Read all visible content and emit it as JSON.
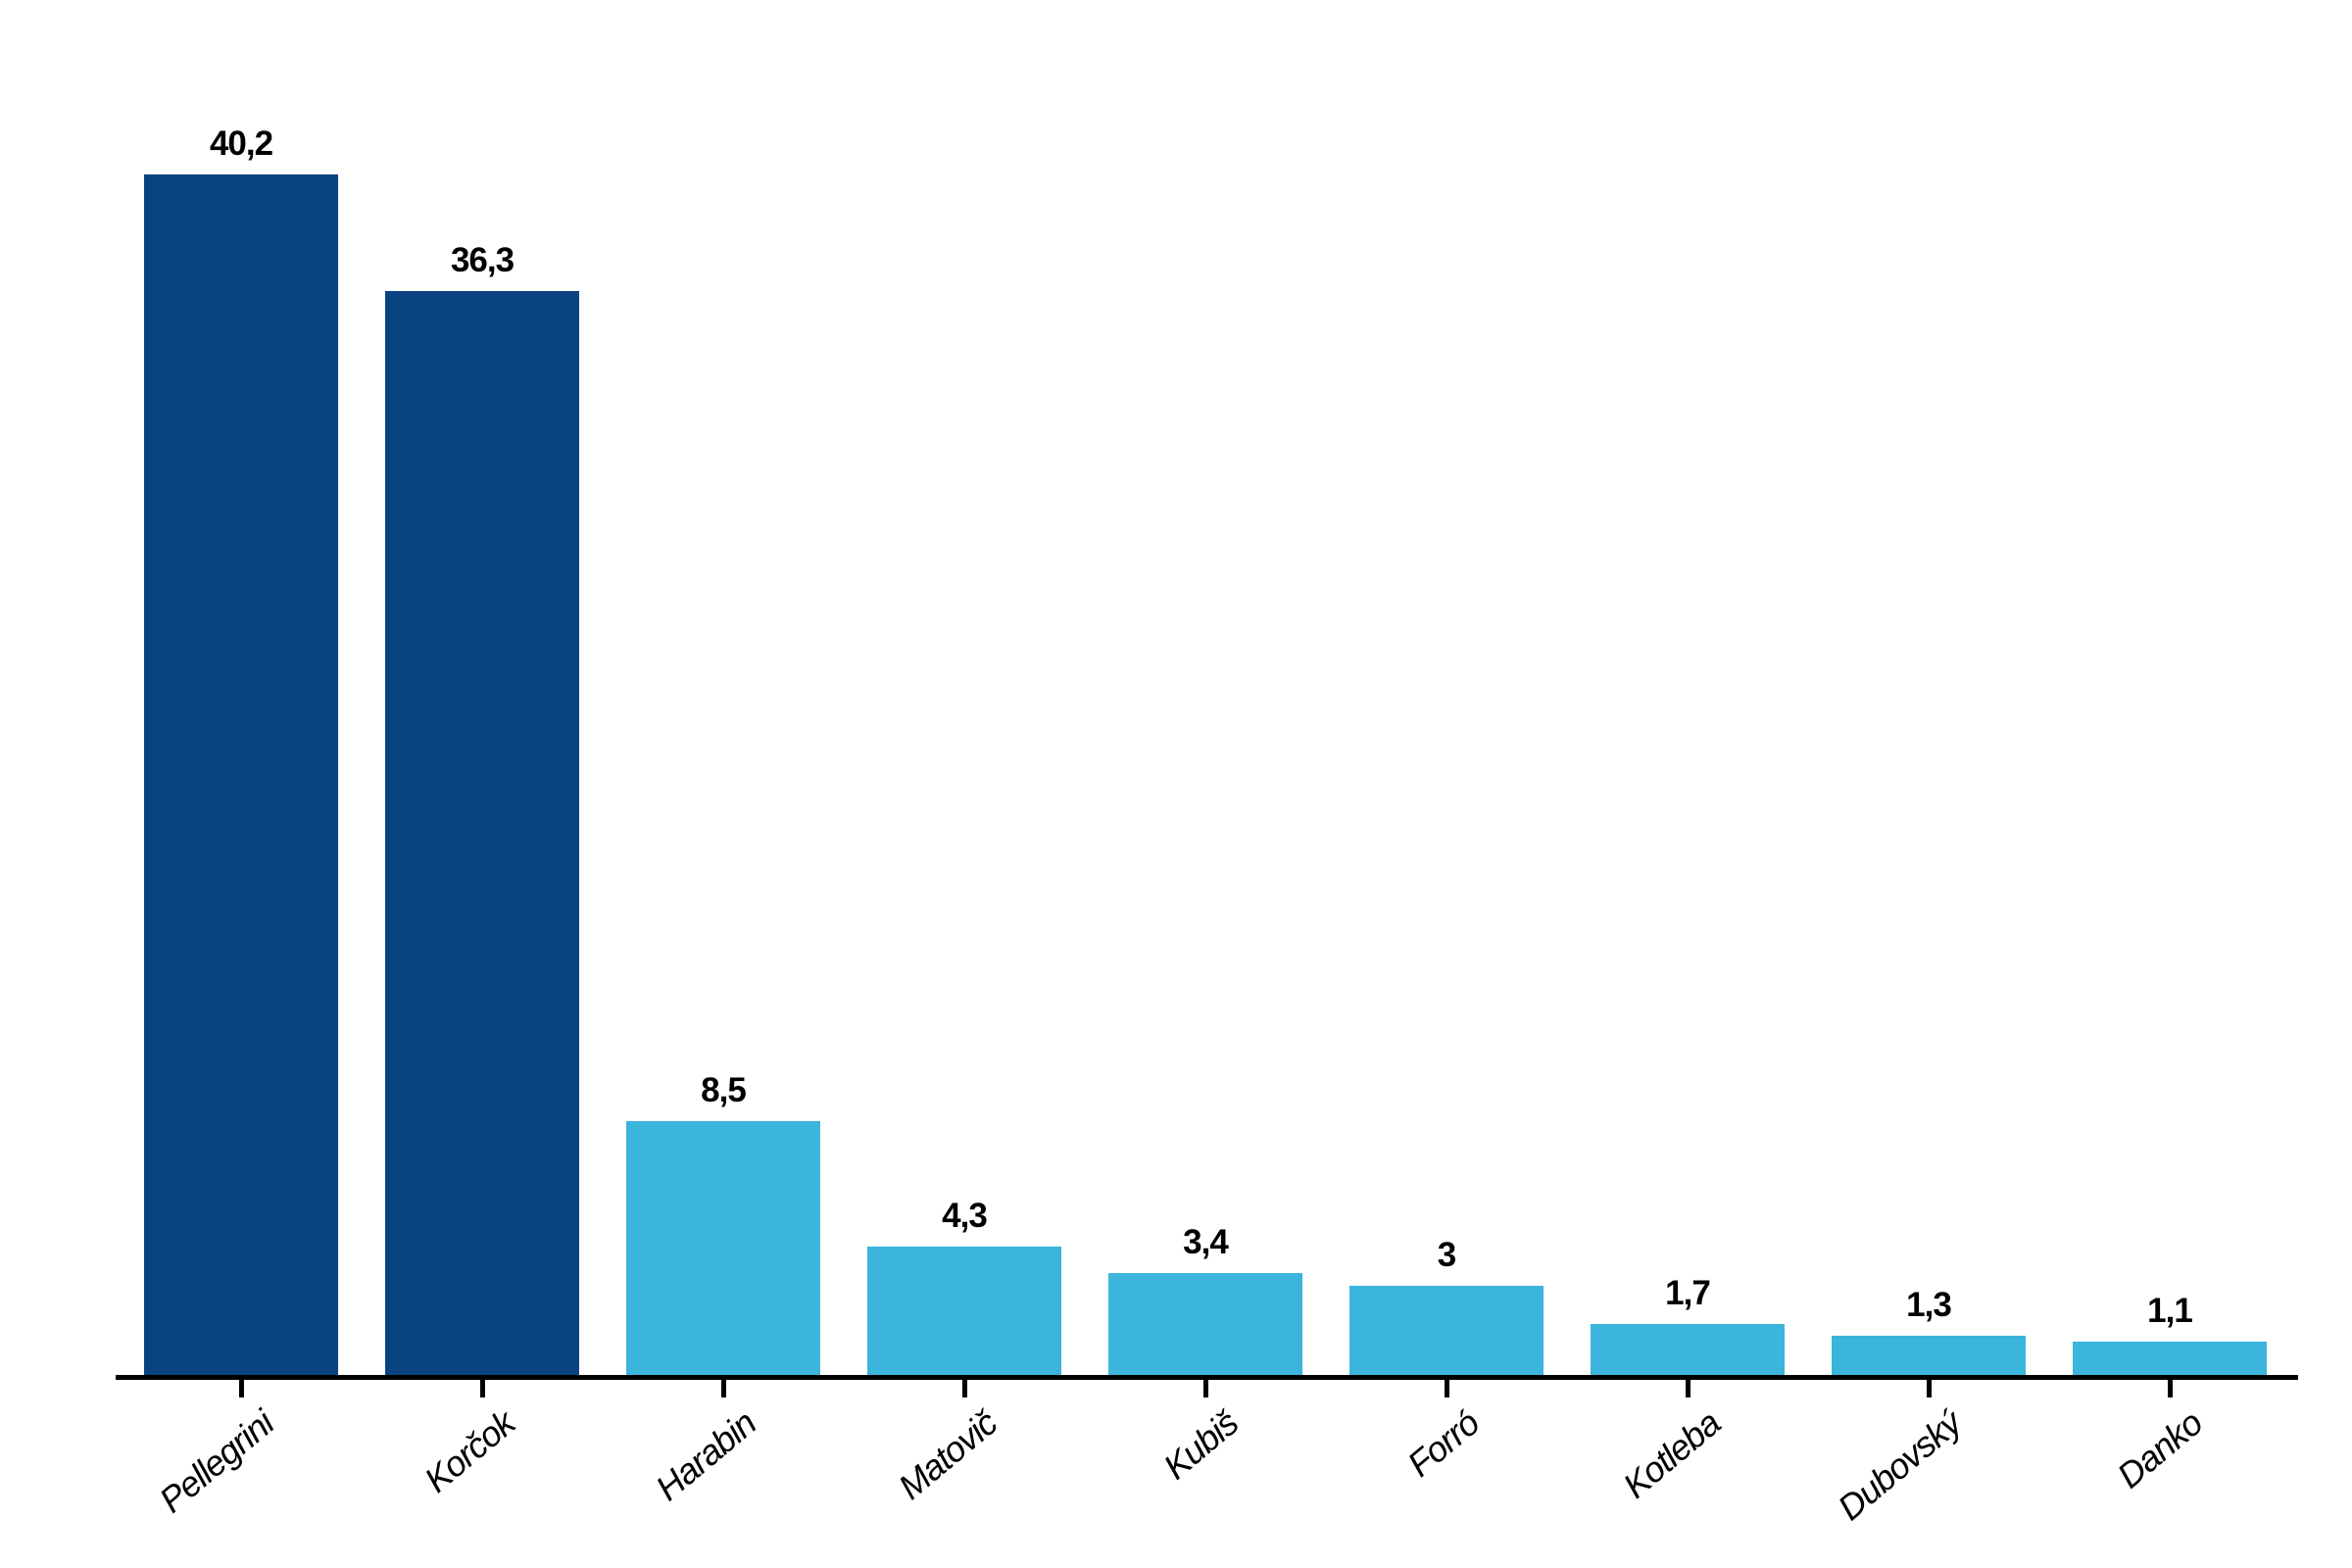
{
  "chart_data": {
    "type": "bar",
    "title": "",
    "xlabel": "",
    "ylabel": "",
    "categories": [
      "Pellegrini",
      "Korčok",
      "Harabin",
      "Matovič",
      "Kubiš",
      "Forró",
      "Kotleba",
      "Dubovský",
      "Danko"
    ],
    "values": [
      40.2,
      36.3,
      8.5,
      4.3,
      3.4,
      3,
      1.7,
      1.3,
      1.1
    ],
    "value_labels": [
      "40,2",
      "36,3",
      "8,5",
      "4,3",
      "3,4",
      "3",
      "1,7",
      "1,3",
      "1,1"
    ],
    "bar_colors": [
      "#0A4382",
      "#0A4382",
      "#3BB5DB",
      "#3BB5DB",
      "#3BB5DB",
      "#3BB5DB",
      "#3BB5DB",
      "#3BB5DB",
      "#3BB5DB"
    ],
    "colors": {
      "leader_bar": "#0A4382",
      "other_bar": "#3BB5DB",
      "axis": "#000000",
      "text": "#000000",
      "background": "#ffffff"
    },
    "ylim": [
      0,
      42
    ],
    "grid": false,
    "legend": null,
    "y_axis_shown": false,
    "decimal_separator": ","
  }
}
